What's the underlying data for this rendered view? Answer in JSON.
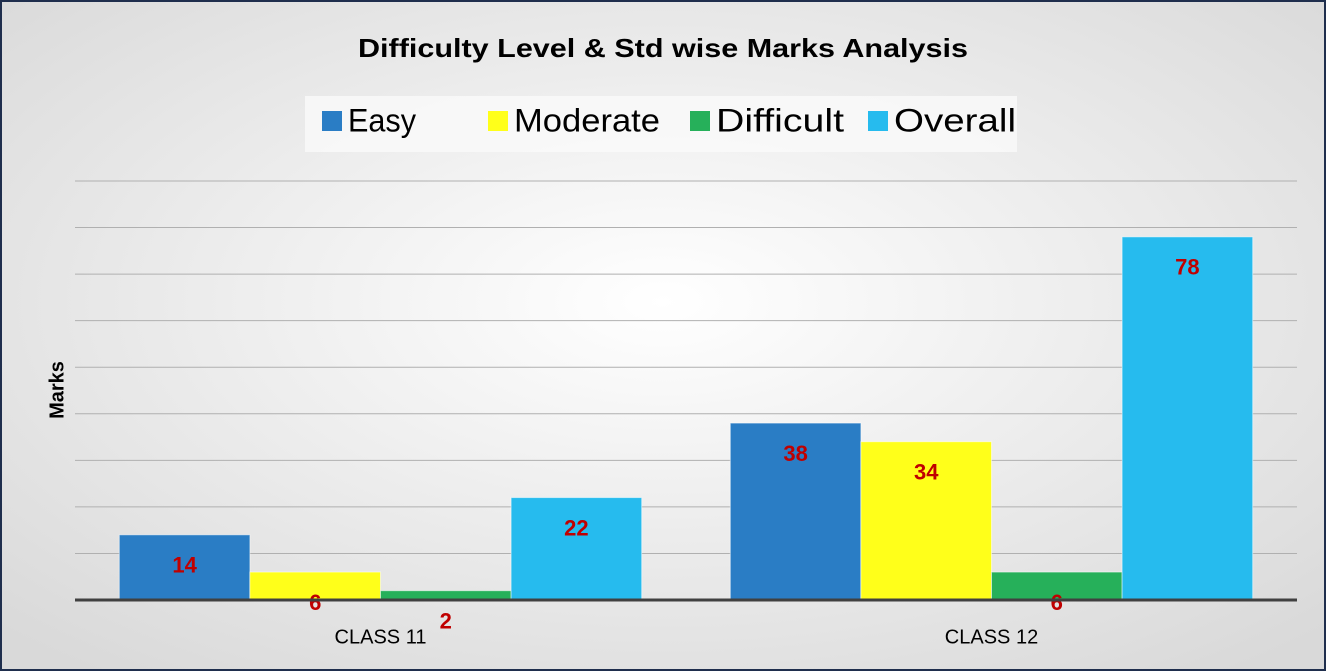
{
  "chart_data": {
    "type": "bar",
    "title": "Difficulty Level & Std wise Marks Analysis",
    "y_label": "Marks",
    "categories": [
      "CLASS 11",
      "CLASS 12"
    ],
    "series": [
      {
        "name": "Easy",
        "color": "#2a7dc5",
        "values": [
          14,
          38
        ]
      },
      {
        "name": "Moderate",
        "color": "#ffff1a",
        "values": [
          6,
          34
        ]
      },
      {
        "name": "Difficult",
        "color": "#26b05a",
        "values": [
          2,
          6
        ]
      },
      {
        "name": "Overall",
        "color": "#26bbee",
        "values": [
          22,
          78
        ]
      }
    ],
    "ylim": [
      0,
      90
    ],
    "yticks": [
      0,
      10,
      20,
      30,
      40,
      50,
      60,
      70,
      80,
      90
    ],
    "grid": true,
    "label_color": "#c00000"
  }
}
